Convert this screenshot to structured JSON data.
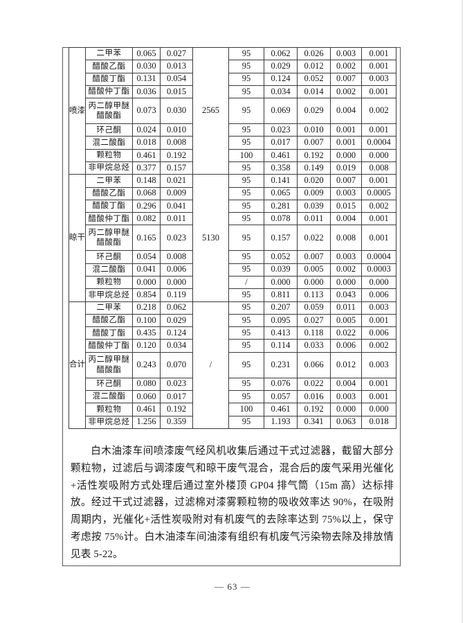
{
  "page": {
    "number_label": "— 63 —"
  },
  "table": {
    "sections": [
      {
        "stage": "喷漆",
        "stack": "2565",
        "rows": [
          {
            "name": "二甲苯",
            "v1": "0.065",
            "v2": "0.027",
            "eff": "95",
            "v3": "0.062",
            "v4": "0.026",
            "v5": "0.003",
            "v6": "0.001"
          },
          {
            "name": "醋酸乙酯",
            "v1": "0.030",
            "v2": "0.013",
            "eff": "95",
            "v3": "0.029",
            "v4": "0.012",
            "v5": "0.002",
            "v6": "0.001"
          },
          {
            "name": "醋酸丁酯",
            "v1": "0.131",
            "v2": "0.054",
            "eff": "95",
            "v3": "0.124",
            "v4": "0.052",
            "v5": "0.007",
            "v6": "0.003"
          },
          {
            "name": "醋酸仲丁酯",
            "v1": "0.036",
            "v2": "0.015",
            "eff": "95",
            "v3": "0.034",
            "v4": "0.014",
            "v5": "0.002",
            "v6": "0.001"
          },
          {
            "name": "丙二醇甲醚醋酸酯",
            "v1": "0.073",
            "v2": "0.030",
            "eff": "95",
            "v3": "0.069",
            "v4": "0.029",
            "v5": "0.004",
            "v6": "0.002"
          },
          {
            "name": "环己酮",
            "v1": "0.024",
            "v2": "0.010",
            "eff": "95",
            "v3": "0.023",
            "v4": "0.010",
            "v5": "0.001",
            "v6": "0.001"
          },
          {
            "name": "混二酸酯",
            "v1": "0.018",
            "v2": "0.008",
            "eff": "95",
            "v3": "0.017",
            "v4": "0.007",
            "v5": "0.001",
            "v6": "0.0004"
          },
          {
            "name": "颗粒物",
            "v1": "0.461",
            "v2": "0.192",
            "eff": "100",
            "v3": "0.461",
            "v4": "0.192",
            "v5": "0.000",
            "v6": "0.000"
          },
          {
            "name": "非甲烷总烃",
            "v1": "0.377",
            "v2": "0.157",
            "eff": "95",
            "v3": "0.358",
            "v4": "0.149",
            "v5": "0.019",
            "v6": "0.008"
          }
        ]
      },
      {
        "stage": "晾干",
        "stack": "5130",
        "rows": [
          {
            "name": "二甲苯",
            "v1": "0.148",
            "v2": "0.021",
            "eff": "95",
            "v3": "0.141",
            "v4": "0.020",
            "v5": "0.007",
            "v6": "0.001"
          },
          {
            "name": "醋酸乙酯",
            "v1": "0.068",
            "v2": "0.009",
            "eff": "95",
            "v3": "0.065",
            "v4": "0.009",
            "v5": "0.003",
            "v6": "0.0005"
          },
          {
            "name": "醋酸丁酯",
            "v1": "0.296",
            "v2": "0.041",
            "eff": "95",
            "v3": "0.281",
            "v4": "0.039",
            "v5": "0.015",
            "v6": "0.002"
          },
          {
            "name": "醋酸仲丁酯",
            "v1": "0.082",
            "v2": "0.011",
            "eff": "95",
            "v3": "0.078",
            "v4": "0.011",
            "v5": "0.004",
            "v6": "0.001"
          },
          {
            "name": "丙二醇甲醚醋酸酯",
            "v1": "0.165",
            "v2": "0.023",
            "eff": "95",
            "v3": "0.157",
            "v4": "0.022",
            "v5": "0.008",
            "v6": "0.001"
          },
          {
            "name": "环己酮",
            "v1": "0.054",
            "v2": "0.008",
            "eff": "95",
            "v3": "0.052",
            "v4": "0.007",
            "v5": "0.003",
            "v6": "0.0004"
          },
          {
            "name": "混二酸酯",
            "v1": "0.041",
            "v2": "0.006",
            "eff": "95",
            "v3": "0.039",
            "v4": "0.005",
            "v5": "0.002",
            "v6": "0.0003"
          },
          {
            "name": "颗粒物",
            "v1": "0.000",
            "v2": "0.000",
            "eff": "/",
            "v3": "0.000",
            "v4": "0.000",
            "v5": "0.000",
            "v6": "0.000"
          },
          {
            "name": "非甲烷总烃",
            "v1": "0.854",
            "v2": "0.119",
            "eff": "95",
            "v3": "0.811",
            "v4": "0.113",
            "v5": "0.043",
            "v6": "0.006"
          }
        ]
      },
      {
        "stage": "合计",
        "stack": "/",
        "rows": [
          {
            "name": "二甲苯",
            "v1": "0.218",
            "v2": "0.062",
            "eff": "95",
            "v3": "0.207",
            "v4": "0.059",
            "v5": "0.011",
            "v6": "0.003"
          },
          {
            "name": "醋酸乙酯",
            "v1": "0.100",
            "v2": "0.029",
            "eff": "95",
            "v3": "0.095",
            "v4": "0.027",
            "v5": "0.005",
            "v6": "0.001"
          },
          {
            "name": "醋酸丁酯",
            "v1": "0.435",
            "v2": "0.124",
            "eff": "95",
            "v3": "0.413",
            "v4": "0.118",
            "v5": "0.022",
            "v6": "0.006"
          },
          {
            "name": "醋酸仲丁酯",
            "v1": "0.120",
            "v2": "0.034",
            "eff": "95",
            "v3": "0.114",
            "v4": "0.033",
            "v5": "0.006",
            "v6": "0.002"
          },
          {
            "name": "丙二醇甲醚醋酸酯",
            "v1": "0.243",
            "v2": "0.070",
            "eff": "95",
            "v3": "0.231",
            "v4": "0.066",
            "v5": "0.012",
            "v6": "0.003"
          },
          {
            "name": "环己酮",
            "v1": "0.080",
            "v2": "0.023",
            "eff": "95",
            "v3": "0.076",
            "v4": "0.022",
            "v5": "0.004",
            "v6": "0.001"
          },
          {
            "name": "混二酸酯",
            "v1": "0.060",
            "v2": "0.017",
            "eff": "95",
            "v3": "0.057",
            "v4": "0.016",
            "v5": "0.003",
            "v6": "0.001"
          },
          {
            "name": "颗粒物",
            "v1": "0.461",
            "v2": "0.192",
            "eff": "100",
            "v3": "0.461",
            "v4": "0.192",
            "v5": "0.000",
            "v6": "0.000"
          },
          {
            "name": "非甲烷总烃",
            "v1": "1.256",
            "v2": "0.359",
            "eff": "95",
            "v3": "1.193",
            "v4": "0.341",
            "v5": "0.063",
            "v6": "0.018"
          }
        ]
      }
    ]
  },
  "paragraph": {
    "text": "白木油漆车间喷漆废气经风机收集后通过干式过滤器，截留大部分颗粒物，过滤后与调漆废气和晾干废气混合，混合后的废气采用光催化+活性炭吸附方式处理后通过室外楼顶 GP04 排气筒（15m 高）达标排放。经过干式过滤器，过滤棉对漆雾颗粒物的吸收效率达 90%，在吸附周期内，光催化+活性炭吸附对有机废气的去除率达到 75%以上，保守考虑按 75%计。白木油漆车间油漆有组织有机废气污染物去除及排放情见表 5-22。"
  }
}
